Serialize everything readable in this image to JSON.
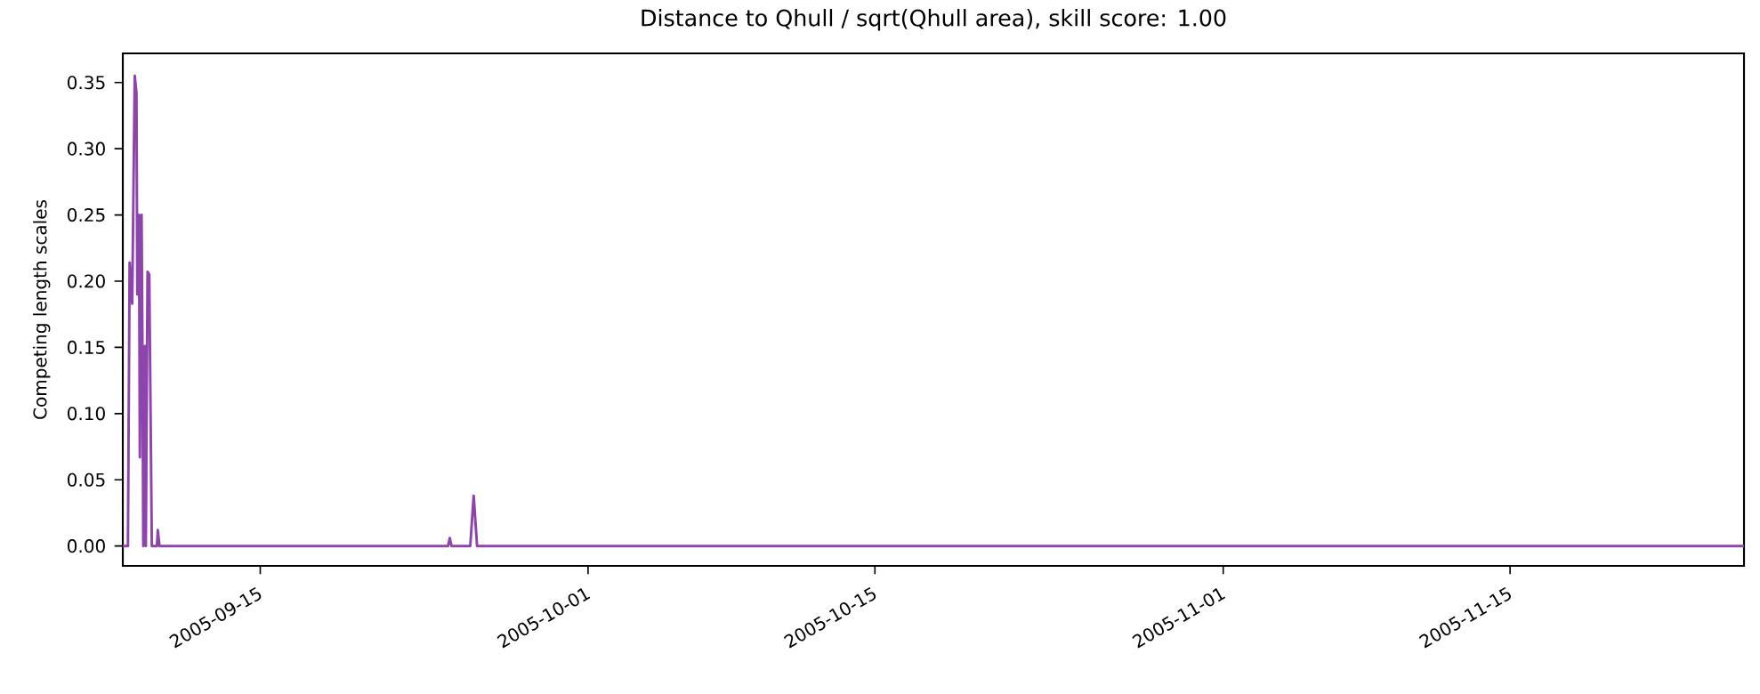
{
  "chart_data": {
    "type": "line",
    "title": "Distance to Qhull / sqrt(Qhull area), skill score: 1.00",
    "ylabel": "Competing length scales",
    "x": [
      "2005-09-08T07:00",
      "2005-09-08T13:00",
      "2005-09-08T15:00",
      "2005-09-08T18:00",
      "2005-09-08T21:00",
      "2005-09-08T23:00",
      "2005-09-09T00:00",
      "2005-09-09T02:00",
      "2005-09-09T03:00",
      "2005-09-09T05:00",
      "2005-09-09T06:00",
      "2005-09-09T07:00",
      "2005-09-09T09:00",
      "2005-09-09T10:00",
      "2005-09-09T12:00",
      "2005-09-09T14:00",
      "2005-09-09T17:00",
      "2005-09-09T23:00",
      "2005-09-10T00:00",
      "2005-09-10T02:00",
      "2005-09-24T04:00",
      "2005-09-24T06:00",
      "2005-09-24T08:00",
      "2005-09-25T06:00",
      "2005-09-25T10:00",
      "2005-09-25T14:00",
      "2005-11-26T10:00"
    ],
    "series": [
      {
        "color": "#8e44ad",
        "values": [
          0,
          0,
          0.214,
          0.183,
          0.355,
          0.342,
          0.19,
          0.25,
          0.067,
          0.25,
          0.151,
          0,
          0.151,
          0,
          0.207,
          0.205,
          0,
          0,
          0.012,
          0,
          0,
          0.006,
          0,
          0,
          0.038,
          0,
          0
        ]
      }
    ],
    "xlim": [
      "2005-09-08T07:00",
      "2005-11-26T10:00"
    ],
    "xticks": [
      "2005-09-15",
      "2005-10-01",
      "2005-10-15",
      "2005-11-01",
      "2005-11-15"
    ],
    "ylim": [
      -0.015,
      0.372
    ],
    "yticks": [
      {
        "value": 0,
        "label": "0.00"
      },
      {
        "value": 0.05,
        "label": "0.05"
      },
      {
        "value": 0.1,
        "label": "0.10"
      },
      {
        "value": 0.15,
        "label": "0.15"
      },
      {
        "value": 0.2,
        "label": "0.20"
      },
      {
        "value": 0.25,
        "label": "0.25"
      },
      {
        "value": 0.3,
        "label": "0.30"
      },
      {
        "value": 0.35,
        "label": "0.35"
      }
    ],
    "grid": false,
    "marker": "none",
    "line_style": "solid"
  }
}
